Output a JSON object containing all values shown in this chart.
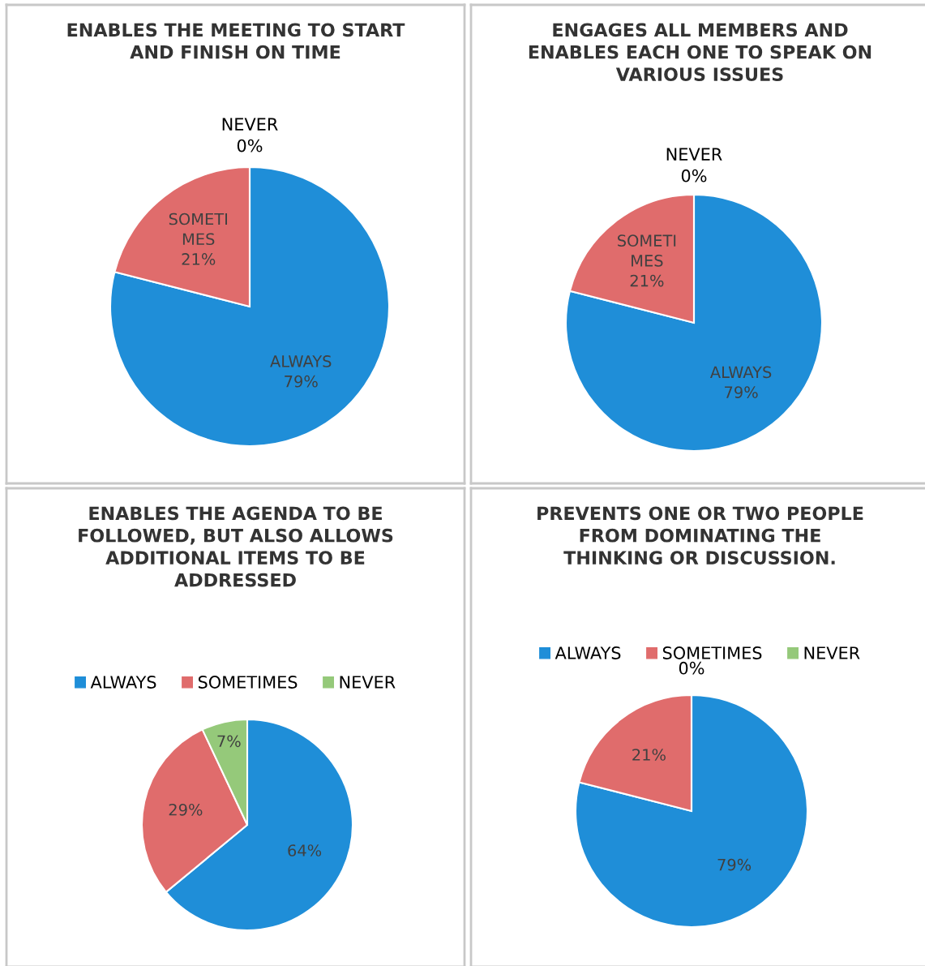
{
  "chart_data": [
    {
      "type": "pie",
      "title": "ENABLES THE MEETING TO START\nAND FINISH ON TIME",
      "categories": [
        "ALWAYS",
        "SOMETI\nMES",
        "NEVER"
      ],
      "values": [
        79,
        21,
        0
      ],
      "colors": [
        "#1f8ed8",
        "#e06c6c",
        "#95c97a"
      ],
      "value_labels": [
        "79%",
        "21%",
        "0%"
      ],
      "legend": false
    },
    {
      "type": "pie",
      "title": "ENGAGES ALL MEMBERS AND\nENABLES EACH ONE TO SPEAK ON\nVARIOUS ISSUES",
      "categories": [
        "ALWAYS",
        "SOMETI\nMES",
        "NEVER"
      ],
      "values": [
        79,
        21,
        0
      ],
      "colors": [
        "#1f8ed8",
        "#e06c6c",
        "#95c97a"
      ],
      "value_labels": [
        "79%",
        "21%",
        "0%"
      ],
      "legend": false
    },
    {
      "type": "pie",
      "title": "ENABLES THE AGENDA TO BE\nFOLLOWED, BUT ALSO ALLOWS\nADDITIONAL ITEMS TO BE\nADDRESSED",
      "categories": [
        "ALWAYS",
        "SOMETIMES",
        "NEVER"
      ],
      "values": [
        64,
        29,
        7
      ],
      "colors": [
        "#1f8ed8",
        "#e06c6c",
        "#95c97a"
      ],
      "value_labels": [
        "64%",
        "29%",
        "7%"
      ],
      "legend": "top"
    },
    {
      "type": "pie",
      "title": "PREVENTS ONE OR TWO PEOPLE\nFROM DOMINATING THE\nTHINKING OR DISCUSSION.",
      "categories": [
        "ALWAYS",
        "SOMETIMES",
        "NEVER"
      ],
      "values": [
        79,
        21,
        0
      ],
      "colors": [
        "#1f8ed8",
        "#e06c6c",
        "#95c97a"
      ],
      "value_labels": [
        "79%",
        "21%",
        "0%"
      ],
      "legend": "top"
    }
  ]
}
